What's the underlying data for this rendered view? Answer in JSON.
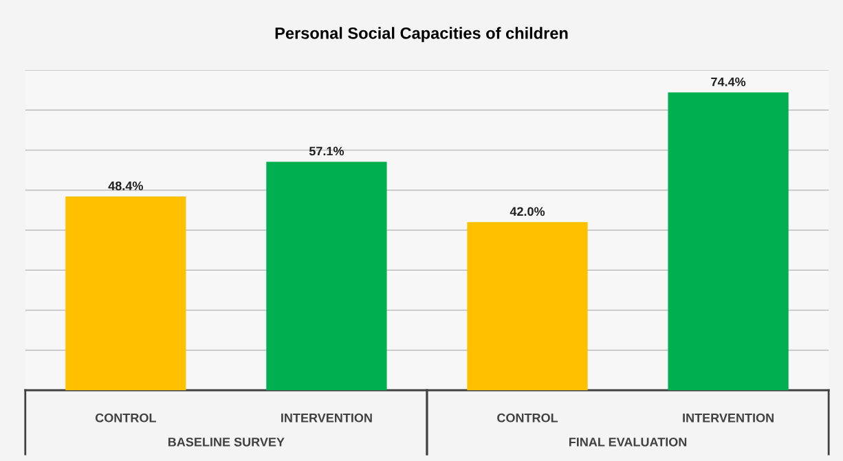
{
  "chart_data": {
    "type": "bar",
    "title": "Personal Social Capacities of children",
    "categories": [
      "CONTROL",
      "INTERVENTION",
      "CONTROL",
      "INTERVENTION"
    ],
    "values": [
      48.4,
      57.1,
      42.0,
      74.4
    ],
    "value_labels": [
      "48.4%",
      "57.1%",
      "42.0%",
      "74.4%"
    ],
    "colors": [
      "#ffc000",
      "#00b050",
      "#ffc000",
      "#00b050"
    ],
    "annotations": [
      "BASELINE SURVEY",
      "FINAL EVALUATION"
    ],
    "ylim": [
      0,
      80
    ],
    "yticks": [
      {
        "value": 0,
        "label": null
      },
      {
        "value": 10,
        "label": null
      },
      {
        "value": 20,
        "label": null
      },
      {
        "value": 30,
        "label": null
      },
      {
        "value": 40,
        "label": null
      },
      {
        "value": 50,
        "label": null
      },
      {
        "value": 60,
        "label": null
      },
      {
        "value": 70,
        "label": null
      },
      {
        "value": 80,
        "label": null
      }
    ],
    "grid": "y",
    "tick_labels": "x",
    "legend": false
  }
}
